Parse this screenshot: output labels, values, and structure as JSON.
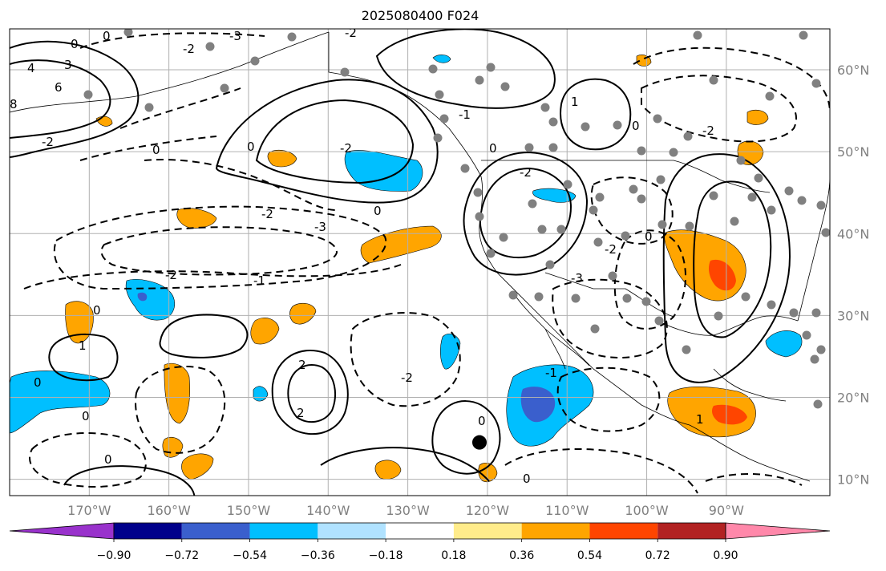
{
  "title": "2025080400 F024",
  "map": {
    "lon_min": -180,
    "lon_max": -77,
    "lat_min": 8,
    "lat_max": 65,
    "lon_ticks": [
      {
        "lon": -170,
        "label": "170°W"
      },
      {
        "lon": -160,
        "label": "160°W"
      },
      {
        "lon": -150,
        "label": "150°W"
      },
      {
        "lon": -140,
        "label": "140°W"
      },
      {
        "lon": -130,
        "label": "130°W"
      },
      {
        "lon": -120,
        "label": "120°W"
      },
      {
        "lon": -110,
        "label": "110°W"
      },
      {
        "lon": -100,
        "label": "100°W"
      },
      {
        "lon": -90,
        "label": "90°W"
      }
    ],
    "lat_ticks": [
      {
        "lat": 60,
        "label": "60°N"
      },
      {
        "lat": 50,
        "label": "50°N"
      },
      {
        "lat": 40,
        "label": "40°N"
      },
      {
        "lat": 30,
        "label": "30°N"
      },
      {
        "lat": 20,
        "label": "20°N"
      },
      {
        "lat": 10,
        "label": "10°N"
      }
    ],
    "marker": {
      "lon": -121,
      "lat": 14.5,
      "color": "#000000"
    }
  },
  "colorbar": {
    "colors": [
      "#9932CC",
      "#00008B",
      "#3A5FCD",
      "#00BFFF",
      "#B0E2FF",
      "#FFFFFF",
      "#FFEC8B",
      "#FFA500",
      "#FF4500",
      "#B22222",
      "#FF88AA"
    ],
    "labels": [
      "−0.90",
      "−0.72",
      "−0.54",
      "−0.36",
      "−0.18",
      "0.18",
      "0.36",
      "0.54",
      "0.72",
      "0.90"
    ]
  },
  "contour_labels": [
    "0",
    "0",
    "-3",
    "-2",
    "-2",
    "4",
    "3",
    "6",
    "8",
    "-2",
    "0",
    "0",
    "-2",
    "-3",
    "-2",
    "-1",
    "0",
    "1",
    "0",
    "-2",
    "2",
    "2",
    "0",
    "-2",
    "0",
    "-1",
    "0",
    "1",
    "-1",
    "-2",
    "-2",
    "-3",
    "0",
    "-2",
    "0",
    "1",
    "0",
    "0",
    "-1",
    "0"
  ]
}
